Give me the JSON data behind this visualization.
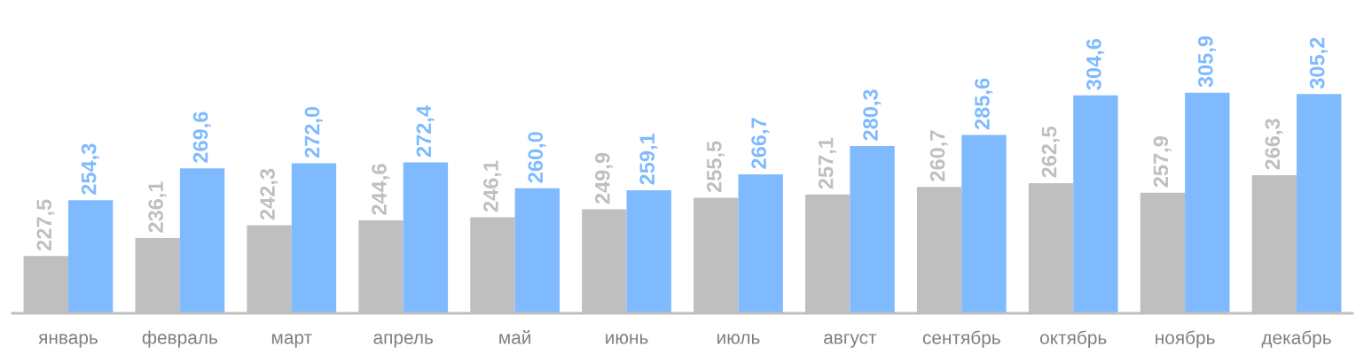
{
  "chart_data": {
    "type": "bar",
    "categories": [
      "январь",
      "февраль",
      "март",
      "апрель",
      "май",
      "июнь",
      "июль",
      "август",
      "сентябрь",
      "октябрь",
      "ноябрь",
      "декабрь"
    ],
    "series": [
      {
        "color": "#bfbfbf",
        "values": [
          227.5,
          236.1,
          242.3,
          244.6,
          246.1,
          249.9,
          255.5,
          257.1,
          260.7,
          262.5,
          257.9,
          266.3
        ],
        "value_labels": [
          "227,5",
          "236,1",
          "242,3",
          "244,6",
          "246,1",
          "249,9",
          "255,5",
          "257,1",
          "260,7",
          "262,5",
          "257,9",
          "266,3"
        ]
      },
      {
        "color": "#7fbaff",
        "values": [
          254.3,
          269.6,
          272.0,
          272.4,
          260.0,
          259.1,
          266.7,
          280.3,
          285.6,
          304.6,
          305.9,
          305.2
        ],
        "value_labels": [
          "254,3",
          "269,6",
          "272,0",
          "272,4",
          "260,0",
          "259,1",
          "266,7",
          "280,3",
          "285,6",
          "304,6",
          "305,9",
          "305,2"
        ]
      }
    ],
    "grid": false,
    "legend": false,
    "tick_labels": "x"
  }
}
